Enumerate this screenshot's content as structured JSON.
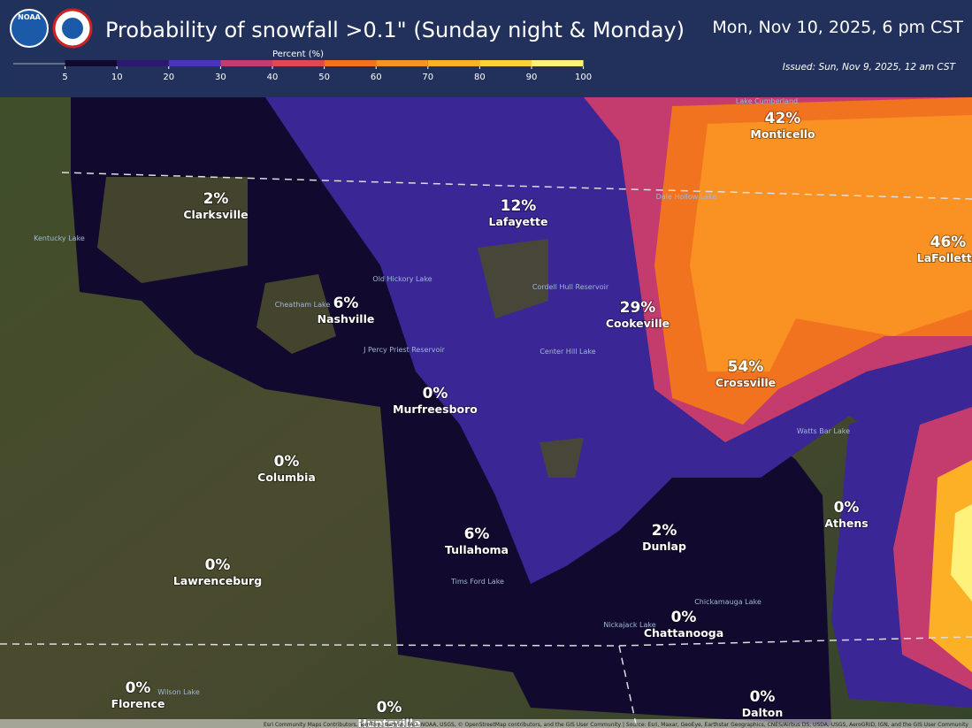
{
  "header": {
    "logo_text": "NOAA",
    "title": "Probability of snowfall >0.1\" (Sunday night & Monday)",
    "valid_time": "Mon, Nov 10, 2025, 6 pm CST",
    "issued": "Issued: Sun, Nov 9, 2025, 12 am CST"
  },
  "legend": {
    "title": "Percent (%)",
    "ticks": [
      5,
      10,
      20,
      30,
      40,
      50,
      60,
      70,
      80,
      90,
      100
    ],
    "colors": [
      "#12092e",
      "#2b1870",
      "#4a34b8",
      "#c43c6e",
      "#e04858",
      "#f2731f",
      "#f99222",
      "#fbb025",
      "#fcd234",
      "#fff27a"
    ]
  },
  "cities": [
    {
      "pct": "2%",
      "name": "Clarksville"
    },
    {
      "pct": "12%",
      "name": "Lafayette"
    },
    {
      "pct": "6%",
      "name": "Nashville"
    },
    {
      "pct": "29%",
      "name": "Cookeville"
    },
    {
      "pct": "42%",
      "name": "Monticello"
    },
    {
      "pct": "46%",
      "name": "LaFollette"
    },
    {
      "pct": "54%",
      "name": "Crossville"
    },
    {
      "pct": "0%",
      "name": "Murfreesboro"
    },
    {
      "pct": "0%",
      "name": "Columbia"
    },
    {
      "pct": "6%",
      "name": "Tullahoma"
    },
    {
      "pct": "2%",
      "name": "Dunlap"
    },
    {
      "pct": "0%",
      "name": "Athens"
    },
    {
      "pct": "0%",
      "name": "Lawrenceburg"
    },
    {
      "pct": "0%",
      "name": "Chattanooga"
    },
    {
      "pct": "0%",
      "name": "Florence"
    },
    {
      "pct": "0%",
      "name": "Dalton"
    },
    {
      "pct": "0%",
      "name": "Huntsville"
    }
  ],
  "lakes": [
    "Kentucky Lake",
    "Cheatham Lake",
    "Old Hickory Lake",
    "J Percy Priest Reservoir",
    "Cordell Hull Reservoir",
    "Center Hill Lake",
    "Dale Hollow Lake",
    "Lake Cumberland",
    "Watts Bar Lake",
    "Tims Ford Lake",
    "Nickajack Lake",
    "Chickamauga Lake",
    "Wilson Lake"
  ],
  "attribution": "Esri Community Maps Contributors, TomTom, Garmin, FAO, NOAA, USGS, © OpenStreetMap contributors, and the GIS User Community | Source: Esri, Maxar, GeoEye, Earthstar Geographics, CNES/Airbus DS, USDA, USGS, AeroGRID, IGN, and the GIS User Community"
}
